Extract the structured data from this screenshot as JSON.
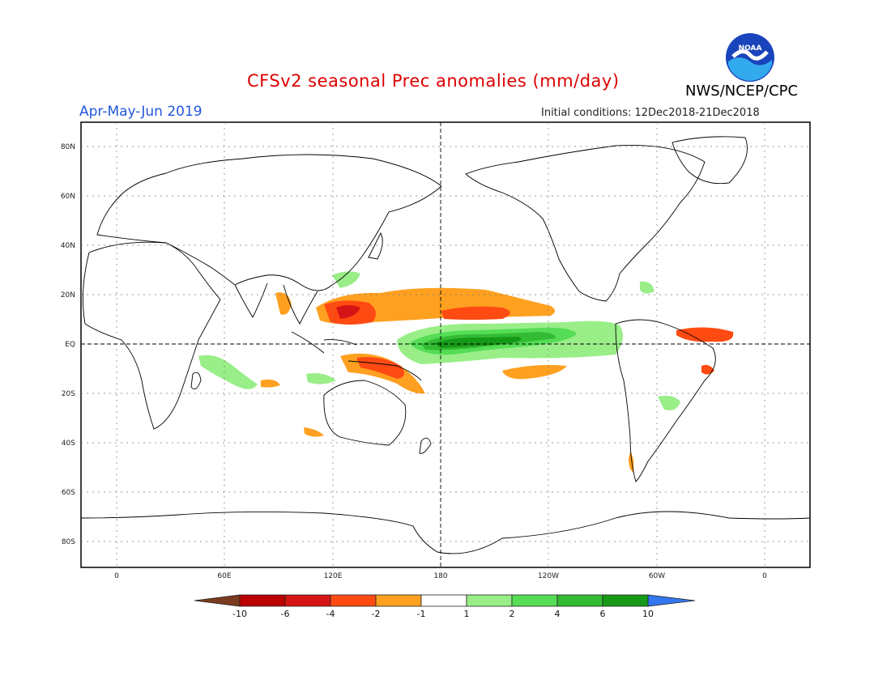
{
  "header": {
    "title": "CFSv2 seasonal Prec anomalies (mm/day)",
    "season": "Apr-May-Jun 2019",
    "initial_conditions": "Initial conditions: 12Dec2018-21Dec2018",
    "org": "NWS/NCEP/CPC",
    "logo_text": "NOAA"
  },
  "colors": {
    "title": "#dd0000",
    "season": "#2255dd",
    "dry_extreme": "#7a3b1e",
    "wet_extreme": "#3377ee"
  },
  "map": {
    "lat_labels": [
      "80N",
      "60N",
      "40N",
      "20N",
      "EQ",
      "20S",
      "40S",
      "60S",
      "80S"
    ],
    "lon_labels": [
      "0",
      "60E",
      "120E",
      "180",
      "120W",
      "60W",
      "0"
    ]
  },
  "colorbar": {
    "labels": [
      "-10",
      "-6",
      "-4",
      "-2",
      "-1",
      "1",
      "2",
      "4",
      "6",
      "10"
    ],
    "bins": [
      {
        "color": "#bb0000"
      },
      {
        "color": "#d51515"
      },
      {
        "color": "#ff4a12"
      },
      {
        "color": "#ffa020"
      },
      {
        "color": "#ffffff"
      },
      {
        "color": "#99ee88"
      },
      {
        "color": "#55dd55"
      },
      {
        "color": "#33bb33"
      },
      {
        "color": "#169916"
      }
    ]
  }
}
